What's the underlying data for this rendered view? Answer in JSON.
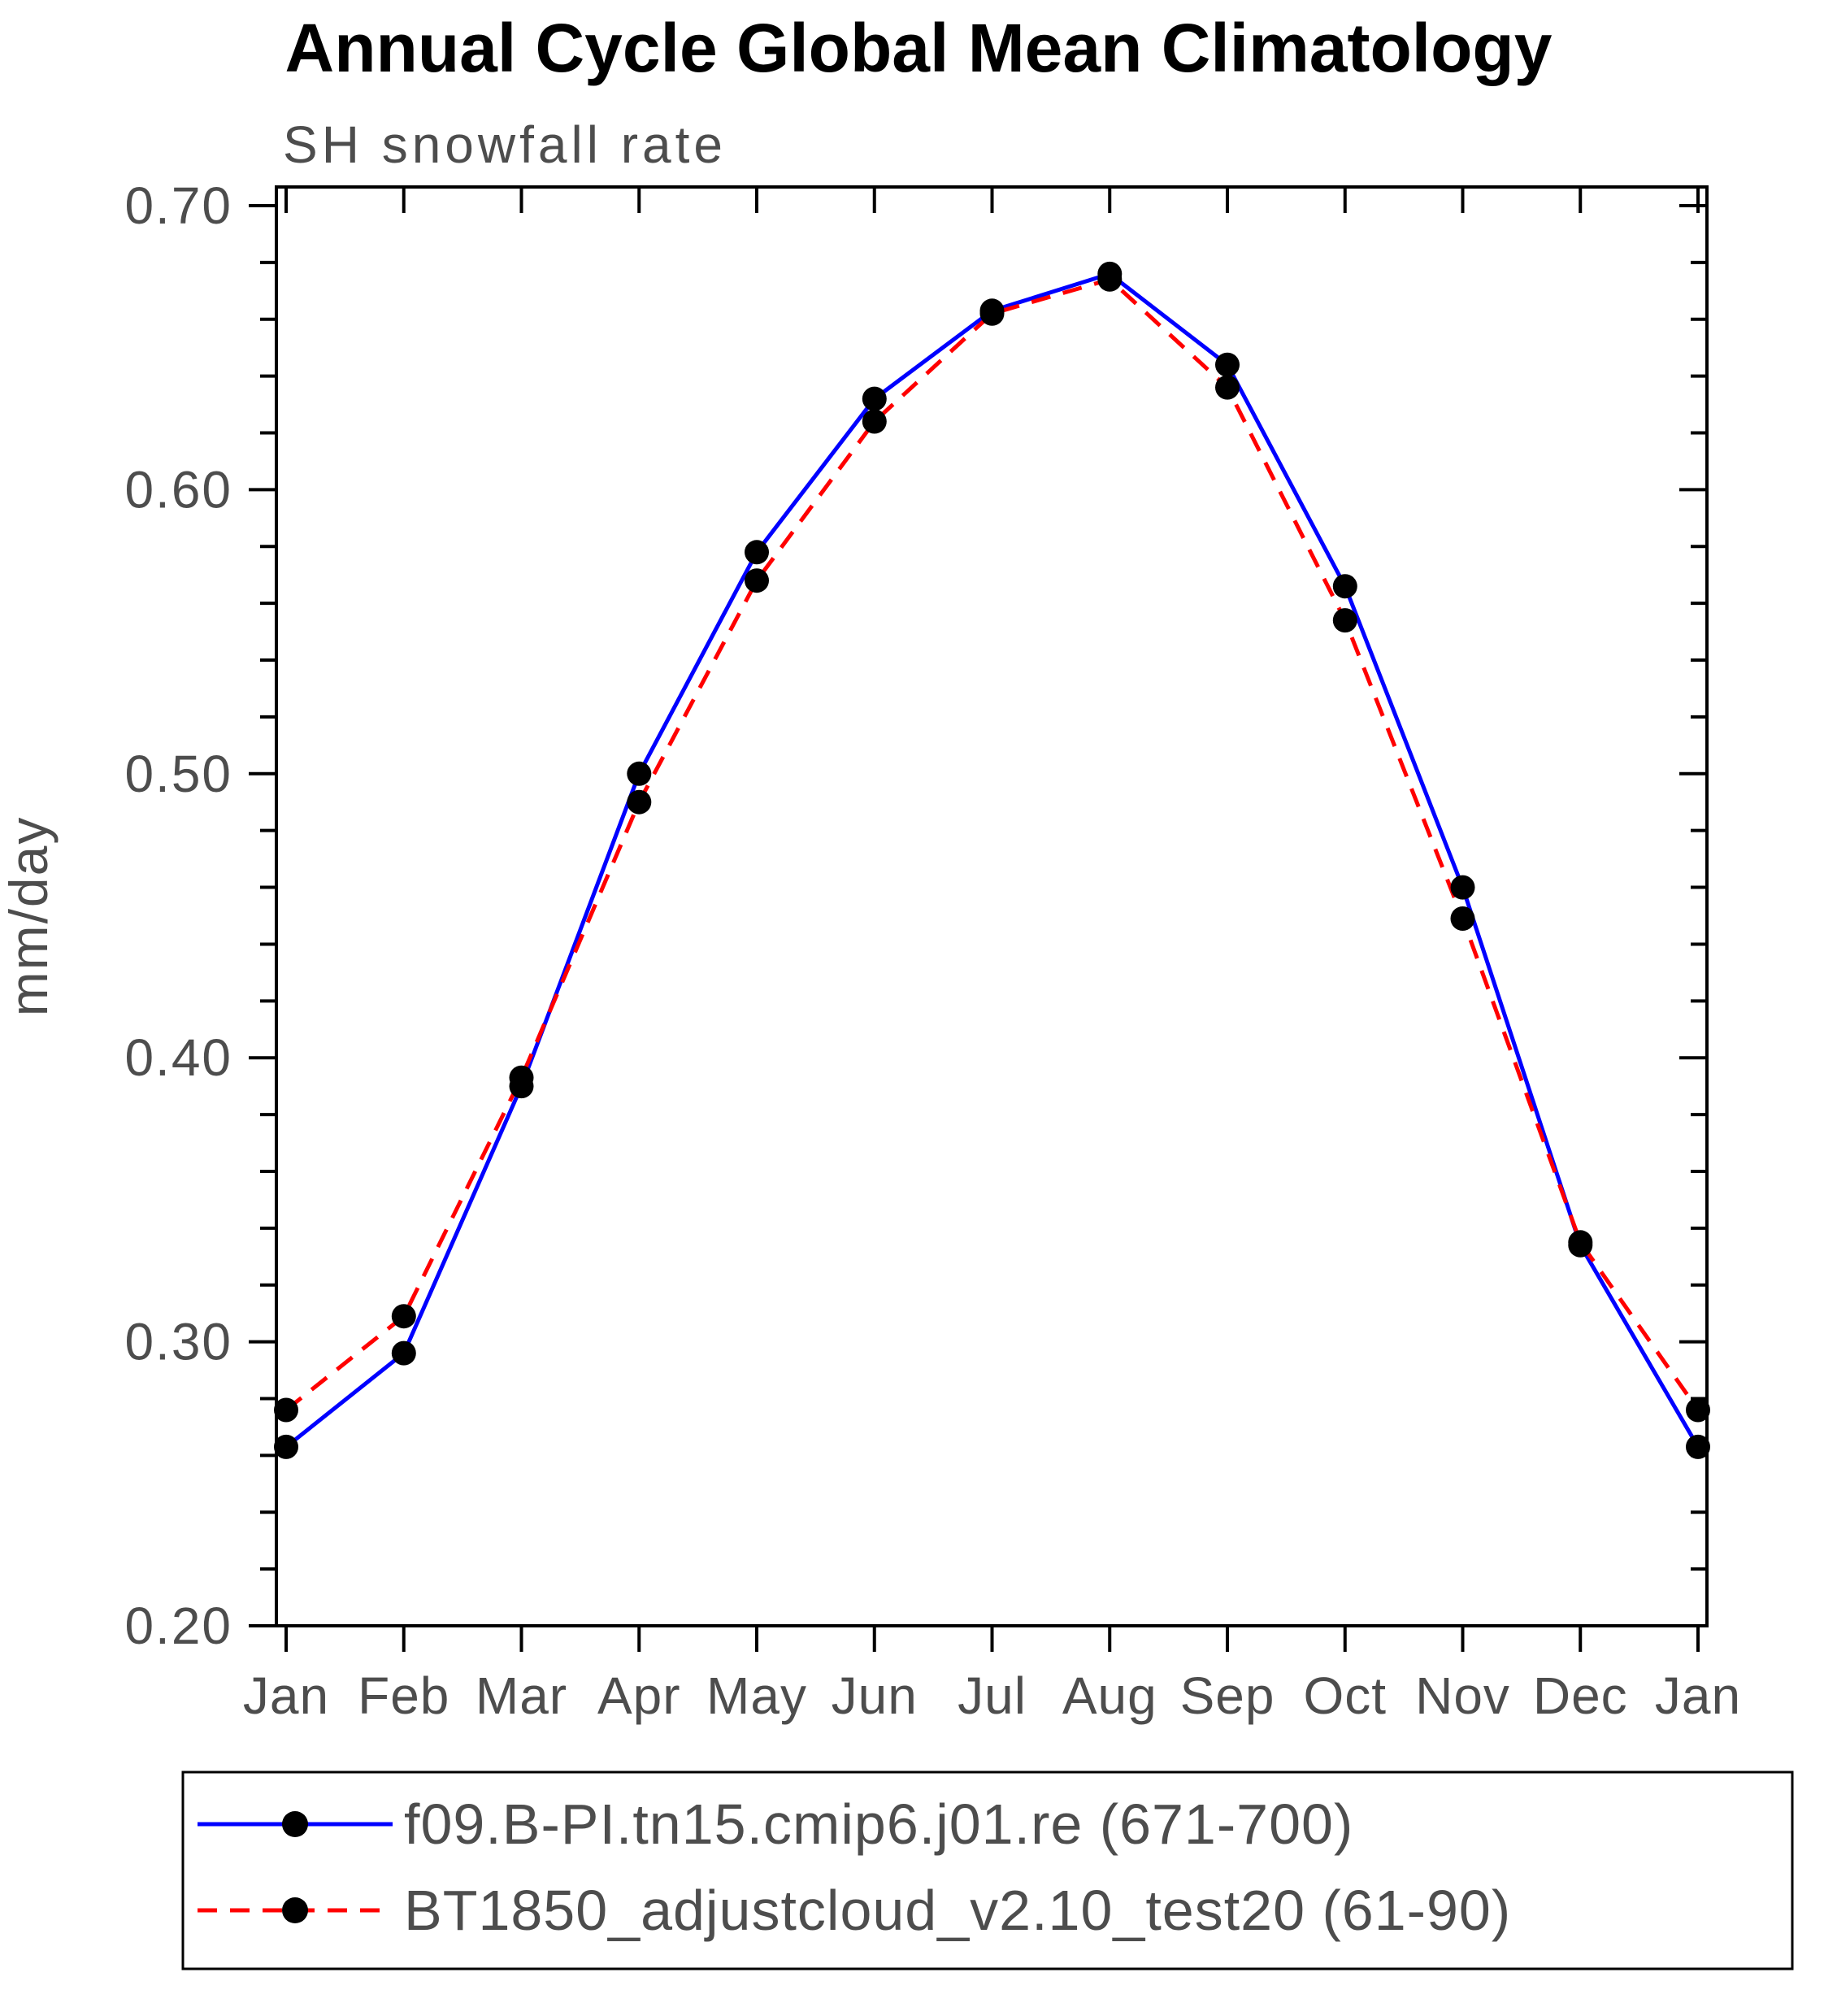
{
  "chart_data": {
    "type": "line",
    "title": "Annual Cycle Global Mean Climatology",
    "subtitle": "SH snowfall rate",
    "ylabel": "mm/day",
    "categories": [
      "Jan",
      "Feb",
      "Mar",
      "Apr",
      "May",
      "Jun",
      "Jul",
      "Aug",
      "Sep",
      "Oct",
      "Nov",
      "Dec",
      "Jan"
    ],
    "ylim": [
      0.2,
      0.7
    ],
    "ytick_step": 0.1,
    "ytick_minor_step": 0.02,
    "ytick_labels": [
      "0.20",
      "0.30",
      "0.40",
      "0.50",
      "0.60",
      "0.70"
    ],
    "grid": false,
    "legend_position": "bottom",
    "axis_color": "#000000",
    "text_color": "#4d4d4d",
    "marker_color": "#000000",
    "series": [
      {
        "name": "f09.B-PI.tn15.cmip6.j01.re (671-700)",
        "color": "#0000ff",
        "style": "solid",
        "values": [
          0.263,
          0.296,
          0.39,
          0.5,
          0.578,
          0.632,
          0.663,
          0.676,
          0.644,
          0.566,
          0.46,
          0.334,
          0.263
        ]
      },
      {
        "name": "BT1850_adjustcloud_v2.10_test20 (61-90)",
        "color": "#ff0000",
        "style": "dashed",
        "values": [
          0.276,
          0.309,
          0.393,
          0.49,
          0.568,
          0.624,
          0.662,
          0.674,
          0.636,
          0.554,
          0.449,
          0.335,
          0.276
        ]
      }
    ]
  }
}
